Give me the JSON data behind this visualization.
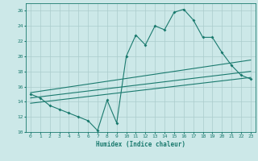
{
  "xlabel": "Humidex (Indice chaleur)",
  "bg_color": "#cce8e8",
  "grid_color": "#aacccc",
  "line_color": "#1a7a6e",
  "xlim": [
    -0.5,
    23.5
  ],
  "ylim": [
    10,
    27
  ],
  "xticks": [
    0,
    1,
    2,
    3,
    4,
    5,
    6,
    7,
    8,
    9,
    10,
    11,
    12,
    13,
    14,
    15,
    16,
    17,
    18,
    19,
    20,
    21,
    22,
    23
  ],
  "yticks": [
    10,
    12,
    14,
    16,
    18,
    20,
    22,
    24,
    26
  ],
  "series1_x": [
    0,
    1,
    2,
    3,
    4,
    5,
    6,
    7,
    8,
    9,
    10,
    11,
    12,
    13,
    14,
    15,
    16,
    17,
    18,
    19,
    20,
    21,
    22,
    23
  ],
  "series1_y": [
    15.0,
    14.5,
    13.5,
    13.0,
    12.5,
    12.0,
    11.5,
    10.2,
    14.2,
    11.2,
    20.0,
    22.8,
    21.5,
    24.0,
    23.5,
    25.8,
    26.2,
    24.8,
    22.5,
    22.5,
    20.5,
    18.8,
    17.5,
    17.0
  ],
  "series2_x": [
    0,
    23
  ],
  "series2_y": [
    15.2,
    19.5
  ],
  "series3_x": [
    0,
    23
  ],
  "series3_y": [
    14.5,
    18.0
  ],
  "series4_x": [
    0,
    23
  ],
  "series4_y": [
    13.8,
    17.2
  ]
}
